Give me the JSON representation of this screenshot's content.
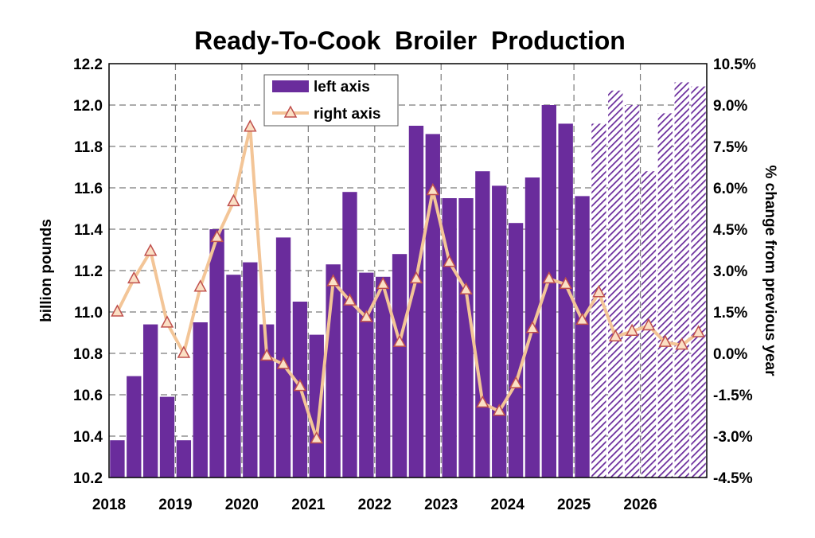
{
  "chart_data": {
    "type": "bar",
    "title": "Ready-To-Cook  Broiler  Production",
    "ylabel": "billion pounds",
    "y2label": "% change from previous year",
    "ylim": [
      10.2,
      12.2
    ],
    "y_ticks": [
      "10.2",
      "10.4",
      "10.6",
      "10.8",
      "11.0",
      "11.2",
      "11.4",
      "11.6",
      "11.8",
      "12.0",
      "12.2"
    ],
    "y2lim": [
      -4.5,
      10.5
    ],
    "y2_ticks": [
      "-4.5%",
      "-3.0%",
      "-1.5%",
      "0.0%",
      "1.5%",
      "3.0%",
      "4.5%",
      "6.0%",
      "7.5%",
      "9.0%",
      "10.5%"
    ],
    "x_ticks": [
      "2018",
      "2019",
      "2020",
      "2021",
      "2022",
      "2023",
      "2024",
      "2025",
      "2026"
    ],
    "grid": true,
    "legend_position": "top-center",
    "colors": {
      "bar": "#6a2c9c",
      "line": "#f3c597",
      "marker_edge": "#c0504d",
      "marker_fill": "#fbe0c5"
    },
    "categories": [
      "2018Q1",
      "2018Q2",
      "2018Q3",
      "2018Q4",
      "2019Q1",
      "2019Q2",
      "2019Q3",
      "2019Q4",
      "2020Q1",
      "2020Q2",
      "2020Q3",
      "2020Q4",
      "2021Q1",
      "2021Q2",
      "2021Q3",
      "2021Q4",
      "2022Q1",
      "2022Q2",
      "2022Q3",
      "2022Q4",
      "2023Q1",
      "2023Q2",
      "2023Q3",
      "2023Q4",
      "2024Q1",
      "2024Q2",
      "2024Q3",
      "2024Q4",
      "2025Q1",
      "2025Q2",
      "2025Q3",
      "2025Q4",
      "2026Q1",
      "2026Q2",
      "2026Q3",
      "2026Q4"
    ],
    "series": [
      {
        "name": "left axis",
        "axis": "left",
        "type": "bar",
        "forecast_from_index": 29,
        "values": [
          10.38,
          10.69,
          10.94,
          10.59,
          10.38,
          10.95,
          11.4,
          11.18,
          11.24,
          10.94,
          11.36,
          11.05,
          10.89,
          11.23,
          11.58,
          11.19,
          11.17,
          11.28,
          11.9,
          11.86,
          11.55,
          11.55,
          11.68,
          11.61,
          11.43,
          11.65,
          12.0,
          11.91,
          11.56,
          11.91,
          12.07,
          12.0,
          11.68,
          11.96,
          12.11,
          12.09
        ]
      },
      {
        "name": "right axis",
        "axis": "right",
        "type": "line",
        "values": [
          1.5,
          2.7,
          3.7,
          1.1,
          0.0,
          2.4,
          4.2,
          5.5,
          8.2,
          -0.1,
          -0.4,
          -1.2,
          -3.1,
          2.6,
          1.9,
          1.3,
          2.5,
          0.4,
          2.7,
          5.9,
          3.3,
          2.3,
          -1.8,
          -2.1,
          -1.1,
          0.9,
          2.7,
          2.5,
          1.2,
          2.2,
          0.6,
          0.8,
          1.0,
          0.4,
          0.3,
          0.75
        ]
      }
    ]
  }
}
